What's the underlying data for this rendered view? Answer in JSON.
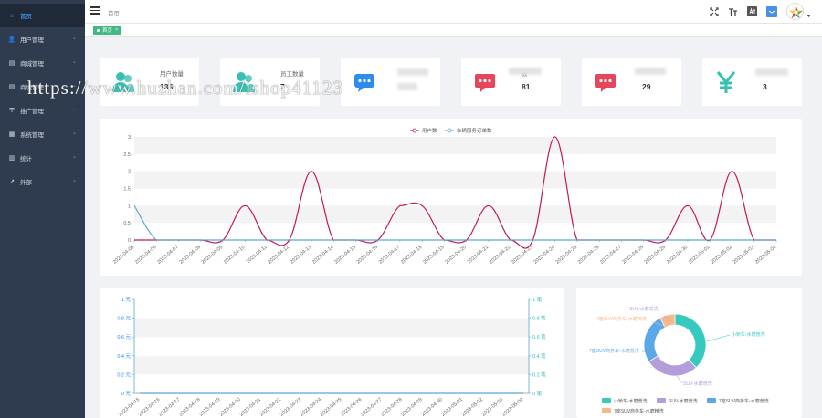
{
  "sidebar": {
    "items": [
      {
        "label": "首页",
        "icon": "home-icon",
        "active": true,
        "arrow": false
      },
      {
        "label": "用户管理",
        "icon": "user-icon",
        "active": false,
        "arrow": true
      },
      {
        "label": "商城管理",
        "icon": "store-icon",
        "active": false,
        "arrow": true
      },
      {
        "label": "商城管理",
        "icon": "store-icon",
        "active": false,
        "arrow": true
      },
      {
        "label": "推广管理",
        "icon": "promo-icon",
        "active": false,
        "arrow": true
      },
      {
        "label": "系统管理",
        "icon": "grid-icon",
        "active": false,
        "arrow": true
      },
      {
        "label": "统计",
        "icon": "chart-icon",
        "active": false,
        "arrow": true
      },
      {
        "label": "外部",
        "icon": "link-icon",
        "active": false,
        "arrow": true
      }
    ]
  },
  "header": {
    "breadcrumb": "首页",
    "icons": [
      "fullscreen-icon",
      "font-size-icon",
      "translate-icon",
      "message-icon",
      "avatar"
    ]
  },
  "tags": [
    {
      "label": "首页"
    }
  ],
  "stats": [
    {
      "label": "用户数量",
      "value": "138",
      "icon": "users-icon",
      "color": "#36c1b3"
    },
    {
      "label": "员工数量",
      "value": "7",
      "icon": "staff-icon",
      "color": "#36c1b3"
    },
    {
      "label": "",
      "value": "",
      "icon": "chat-icon",
      "color": "#2d8cf0"
    },
    {
      "label": "数",
      "value": "81",
      "icon": "comment-icon",
      "color": "#e6455b"
    },
    {
      "label": "",
      "value": "29",
      "icon": "comment-icon",
      "color": "#e6455b"
    },
    {
      "label": "",
      "value": "3",
      "icon": "yen-icon",
      "color": "#36c1b3"
    }
  ],
  "watermark": "https://www.huzhan.com/ishop41123",
  "chart_data": [
    {
      "type": "line",
      "legend": [
        "用户数",
        "车辆服务订单数"
      ],
      "legend_position": "top-center",
      "x": [
        "2023-04-05",
        "2023-04-06",
        "2023-04-07",
        "2023-04-08",
        "2023-04-09",
        "2023-04-10",
        "2023-04-11",
        "2023-04-12",
        "2023-04-13",
        "2023-04-14",
        "2023-04-15",
        "2023-04-16",
        "2023-04-17",
        "2023-04-18",
        "2023-04-19",
        "2023-04-20",
        "2023-04-21",
        "2023-04-22",
        "2023-04-23",
        "2023-04-24",
        "2023-04-25",
        "2023-04-26",
        "2023-04-27",
        "2023-04-28",
        "2023-04-29",
        "2023-04-30",
        "2023-05-01",
        "2023-05-02",
        "2023-05-03",
        "2023-05-04"
      ],
      "series": [
        {
          "name": "用户数",
          "color": "#c2185b",
          "values": [
            0,
            0,
            0,
            0,
            0,
            1,
            0,
            0,
            2,
            0,
            0,
            0,
            1,
            1,
            0,
            0,
            1,
            0,
            0,
            3,
            0,
            0,
            0,
            0,
            0,
            1,
            0,
            2,
            0,
            0
          ]
        },
        {
          "name": "车辆服务订单数",
          "color": "#5ba8d6",
          "values": [
            1,
            0,
            0,
            0,
            0,
            0,
            0,
            0,
            0,
            0,
            0,
            0,
            0,
            0,
            0,
            0,
            0,
            0,
            0,
            0,
            0,
            0,
            0,
            0,
            0,
            0,
            0,
            0,
            0,
            0
          ]
        }
      ],
      "yticks": [
        "0",
        "0.5",
        "1",
        "1.5",
        "2",
        "2.5",
        "3"
      ],
      "ylim": [
        0,
        3
      ],
      "grid": true
    },
    {
      "type": "line",
      "x": [
        "2023-04-15",
        "2023-04-16",
        "2023-04-17",
        "2023-04-18",
        "2023-04-19",
        "2023-04-20",
        "2023-04-21",
        "2023-04-22",
        "2023-04-23",
        "2023-04-24",
        "2023-04-25",
        "2023-04-26",
        "2023-04-27",
        "2023-04-28",
        "2023-04-29",
        "2023-04-30",
        "2023-05-01",
        "2023-05-02",
        "2023-05-03",
        "2023-05-04"
      ],
      "yticks_left": [
        "0 元",
        "0.2 元",
        "0.4 元",
        "0.6 元",
        "0.8 元",
        "1 元"
      ],
      "yticks_right": [
        "0 笔",
        "0.2 笔",
        "0.4 笔",
        "0.6 笔",
        "0.8 笔",
        "1 笔"
      ],
      "ylim": [
        0,
        1
      ],
      "series": [
        {
          "name": "",
          "color": "#5ba8d6",
          "values": [
            0,
            0,
            0,
            0,
            0,
            0,
            0,
            0,
            0,
            0,
            0,
            0,
            0,
            0,
            0,
            0,
            0,
            0,
            0,
            0
          ]
        }
      ],
      "grid": true
    },
    {
      "type": "pie",
      "donut": true,
      "slices": [
        {
          "name": "小轿车-水磨普洗",
          "value": 38,
          "color": "#36c9c0"
        },
        {
          "name": "SUV-水磨普洗",
          "value": 28,
          "color": "#b39ddb"
        },
        {
          "name": "7座SUV商务车-水磨普洗",
          "value": 26,
          "color": "#5aa8e8"
        },
        {
          "name": "7座SUV商务车-水磨精洗",
          "value": 8,
          "color": "#f5b98c"
        }
      ],
      "callouts": [
        "SUV-水磨普洗",
        "7座SUV商务车-水磨精洗",
        "7座SUV商务车-水磨普洗",
        "小轿车-水磨普洗",
        "SUV-水磨普洗"
      ],
      "legend_position": "bottom"
    }
  ]
}
